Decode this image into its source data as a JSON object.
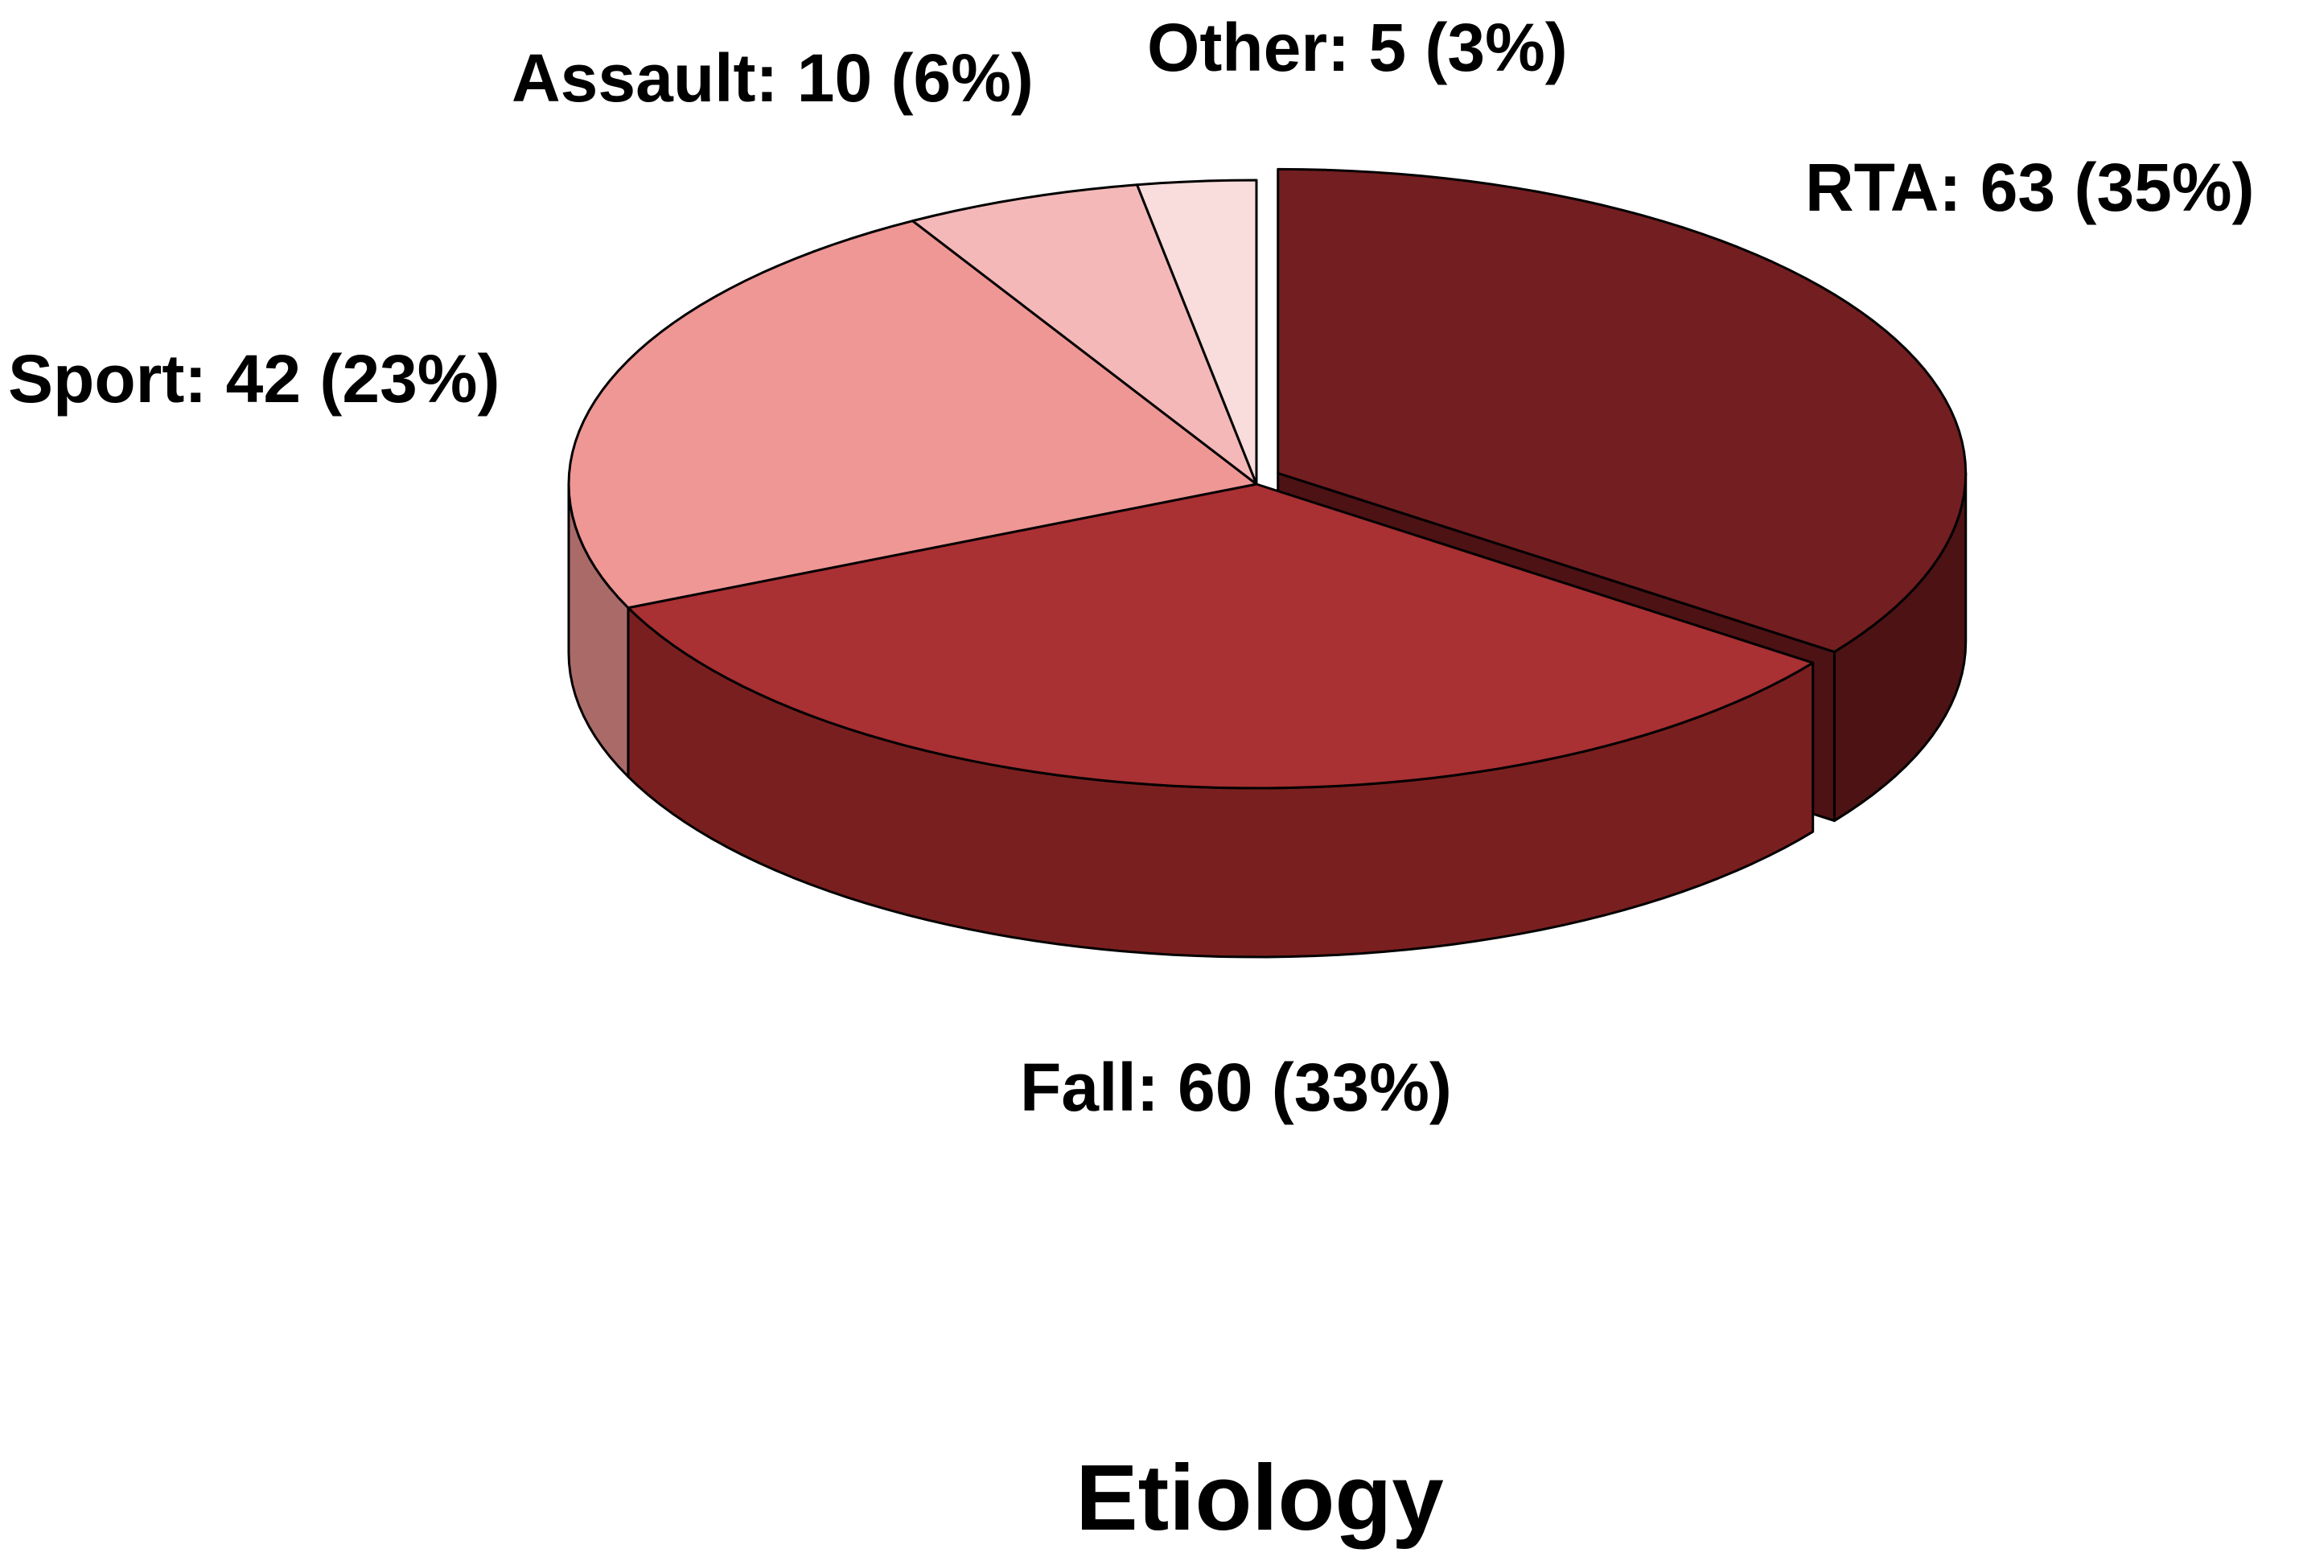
{
  "chart_data": {
    "type": "pie",
    "title": "Etiology",
    "slices": [
      {
        "category": "RTA",
        "value": 63,
        "percent": 35,
        "label": "RTA: 63 (35%)",
        "color": "#731E21",
        "side_color": "#4D1214",
        "exploded": true
      },
      {
        "category": "Fall",
        "value": 60,
        "percent": 33,
        "label": "Fall: 60 (33%)",
        "color": "#A93033",
        "side_color": "#7A1F1F",
        "exploded": false
      },
      {
        "category": "Sport",
        "value": 42,
        "percent": 23,
        "label": "Sport: 42 (23%)",
        "color": "#EE9795",
        "side_color": "#AA6A68",
        "exploded": false
      },
      {
        "category": "Assault",
        "value": 10,
        "percent": 6,
        "label": "Assault: 10 (6%)",
        "color": "#F4B8B8",
        "side_color": "#B58888",
        "exploded": false
      },
      {
        "category": "Other",
        "value": 5,
        "percent": 3,
        "label": "Other: 5 (3%)",
        "color": "#F9DCDC",
        "side_color": "#C4A3A3",
        "exploded": false
      }
    ],
    "style": "3d-pie",
    "legend": "none"
  }
}
